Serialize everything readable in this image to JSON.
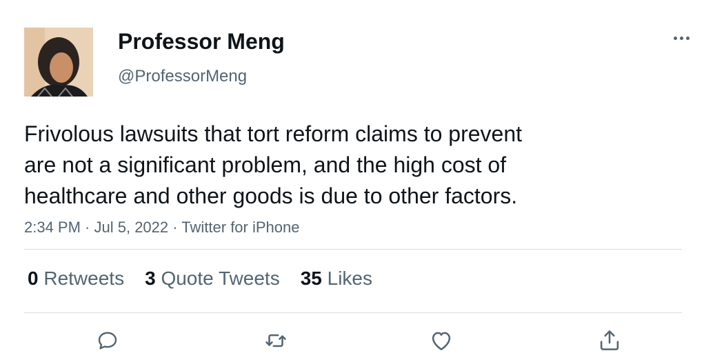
{
  "author": {
    "name": "Professor Meng",
    "handle": "@ProfessorMeng"
  },
  "tweet": {
    "text_lines": [
      "Frivolous lawsuits that tort reform claims to prevent",
      "are not a significant problem, and the high cost of",
      "healthcare and other goods is due to other factors."
    ],
    "time": "2:34 PM",
    "date": "Jul 5, 2022",
    "source": "Twitter for iPhone",
    "separator": " · "
  },
  "stats": {
    "retweets": {
      "count": "0",
      "label": "Retweets"
    },
    "quote_tweets": {
      "count": "3",
      "label": "Quote Tweets"
    },
    "likes": {
      "count": "35",
      "label": "Likes"
    }
  },
  "icons": {
    "more": "more-horizontal-icon",
    "reply": "reply-icon",
    "retweet": "retweet-icon",
    "like": "heart-icon",
    "share": "share-icon"
  },
  "colors": {
    "text_primary": "#0f1419",
    "text_secondary": "#536471",
    "divider": "#dadde1"
  }
}
